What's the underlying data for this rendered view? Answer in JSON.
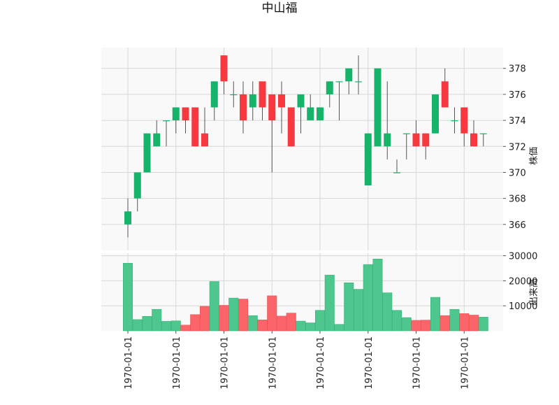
{
  "chart_data": {
    "type": "candlestick",
    "title": "中山福",
    "price_panel": {
      "ylabel": "株価",
      "ylim": [
        364.0,
        379.6
      ],
      "yticks": [
        366,
        368,
        370,
        372,
        374,
        376,
        378
      ],
      "grid": true
    },
    "volume_panel": {
      "ylabel": "出来高",
      "ylim": [
        0,
        31000
      ],
      "yticks": [
        10000,
        20000,
        30000
      ],
      "grid": true
    },
    "x_tick_labels": [
      "1970-01-01",
      "1970-01-01",
      "1970-01-01",
      "1970-01-01",
      "1970-01-01",
      "1970-01-01",
      "1970-01-01",
      "1970-01-01"
    ],
    "x_tick_positions": [
      0,
      5,
      10,
      15,
      20,
      25,
      30,
      35
    ],
    "colors": {
      "up": "#16b46a",
      "down": "#f7393f",
      "up_volume": "#4ec78e",
      "down_volume": "#fb6569",
      "panel_background": "#f9f9f9",
      "grid": "#d8d8d8",
      "wick": "#555555"
    },
    "candles": [
      {
        "open": 366,
        "high": 368,
        "low": 365,
        "close": 367,
        "volume": 27000
      },
      {
        "open": 368,
        "high": 370,
        "low": 367,
        "close": 370,
        "volume": 4500
      },
      {
        "open": 370,
        "high": 373,
        "low": 370,
        "close": 373,
        "volume": 5800
      },
      {
        "open": 372,
        "high": 374,
        "low": 372,
        "close": 373,
        "volume": 8600
      },
      {
        "open": 374,
        "high": 374,
        "low": 372,
        "close": 374,
        "volume": 3800
      },
      {
        "open": 374,
        "high": 375,
        "low": 373,
        "close": 375,
        "volume": 4000
      },
      {
        "open": 375,
        "high": 375,
        "low": 373,
        "close": 374,
        "volume": 2300
      },
      {
        "open": 375,
        "high": 375,
        "low": 372,
        "close": 372,
        "volume": 6500
      },
      {
        "open": 373,
        "high": 375,
        "low": 372,
        "close": 372,
        "volume": 9800
      },
      {
        "open": 375,
        "high": 377,
        "low": 374,
        "close": 377,
        "volume": 19700
      },
      {
        "open": 379,
        "high": 379,
        "low": 376,
        "close": 377,
        "volume": 10200
      },
      {
        "open": 376,
        "high": 377,
        "low": 375,
        "close": 376,
        "volume": 13100
      },
      {
        "open": 376,
        "high": 377,
        "low": 373,
        "close": 374,
        "volume": 12700
      },
      {
        "open": 375,
        "high": 377,
        "low": 374,
        "close": 376,
        "volume": 6100
      },
      {
        "open": 377,
        "high": 377,
        "low": 374,
        "close": 375,
        "volume": 4400
      },
      {
        "open": 376,
        "high": 376,
        "low": 370,
        "close": 374,
        "volume": 14000
      },
      {
        "open": 376,
        "high": 377,
        "low": 373,
        "close": 375,
        "volume": 5900
      },
      {
        "open": 375,
        "high": 375,
        "low": 372,
        "close": 372,
        "volume": 7100
      },
      {
        "open": 375,
        "high": 376,
        "low": 373,
        "close": 376,
        "volume": 3900
      },
      {
        "open": 374,
        "high": 376,
        "low": 374,
        "close": 375,
        "volume": 3200
      },
      {
        "open": 374,
        "high": 375,
        "low": 374,
        "close": 375,
        "volume": 8200
      },
      {
        "open": 376,
        "high": 377,
        "low": 375,
        "close": 377,
        "volume": 22300
      },
      {
        "open": 377,
        "high": 377,
        "low": 374,
        "close": 377,
        "volume": 2600
      },
      {
        "open": 377,
        "high": 378,
        "low": 376,
        "close": 378,
        "volume": 19200
      },
      {
        "open": 377,
        "high": 379,
        "low": 376,
        "close": 377,
        "volume": 16600
      },
      {
        "open": 369,
        "high": 373,
        "low": 369,
        "close": 373,
        "volume": 26500
      },
      {
        "open": 372,
        "high": 378,
        "low": 372,
        "close": 378,
        "volume": 28700
      },
      {
        "open": 372,
        "high": 377,
        "low": 371,
        "close": 373,
        "volume": 15200
      },
      {
        "open": 370,
        "high": 371,
        "low": 370,
        "close": 370,
        "volume": 8200
      },
      {
        "open": 373,
        "high": 373,
        "low": 371,
        "close": 373,
        "volume": 5300
      },
      {
        "open": 373,
        "high": 374,
        "low": 372,
        "close": 372,
        "volume": 4200
      },
      {
        "open": 373,
        "high": 373,
        "low": 371,
        "close": 372,
        "volume": 4300
      },
      {
        "open": 373,
        "high": 376,
        "low": 373,
        "close": 376,
        "volume": 13400
      },
      {
        "open": 377,
        "high": 378,
        "low": 375,
        "close": 375,
        "volume": 6100
      },
      {
        "open": 374,
        "high": 375,
        "low": 373,
        "close": 374,
        "volume": 8600
      },
      {
        "open": 375,
        "high": 375,
        "low": 372,
        "close": 373,
        "volume": 6900
      },
      {
        "open": 373,
        "high": 374,
        "low": 372,
        "close": 372,
        "volume": 6300
      },
      {
        "open": 373,
        "high": 373,
        "low": 372,
        "close": 373,
        "volume": 5500
      }
    ]
  }
}
